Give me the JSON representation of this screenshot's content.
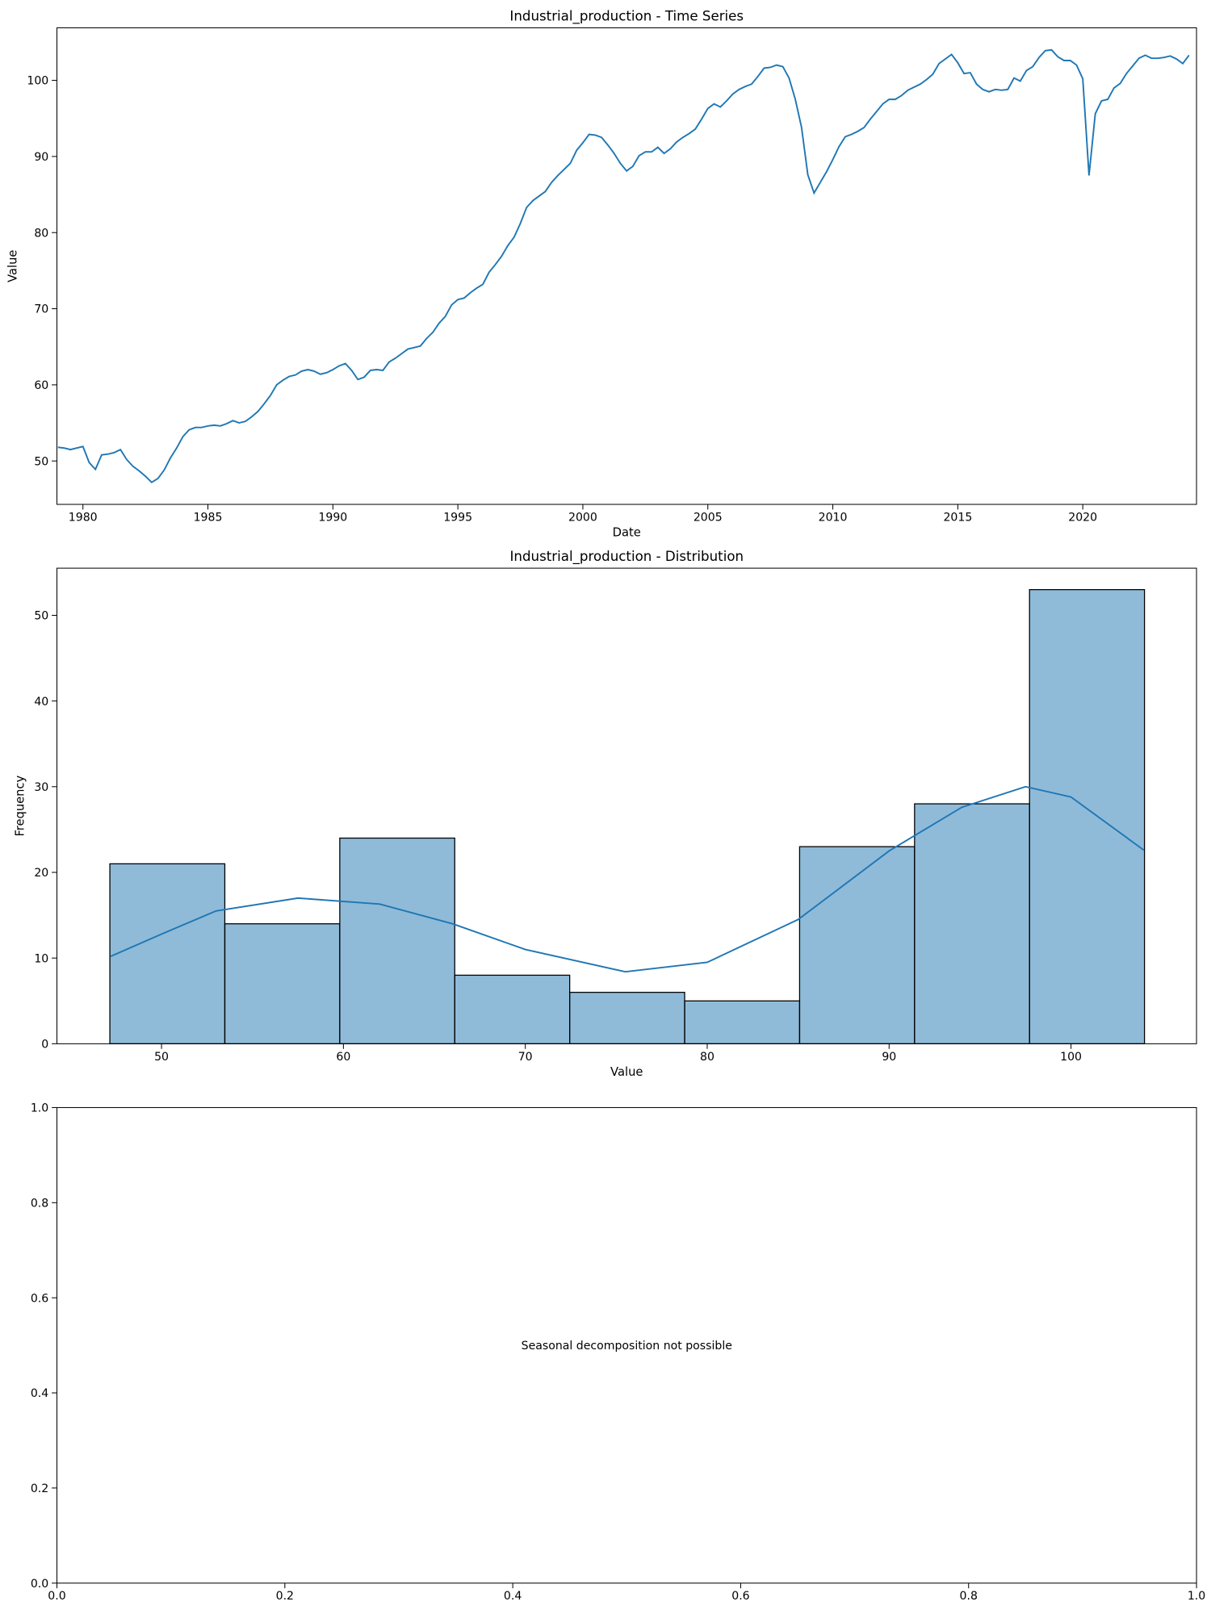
{
  "chart_data": [
    {
      "type": "line",
      "title": "Industrial_production - Time Series",
      "xlabel": "Date",
      "ylabel": "Value",
      "color": "#1f77b4",
      "xlim": [
        1978.96,
        2024.55
      ],
      "xticks": [
        1980,
        1985,
        1990,
        1995,
        2000,
        2005,
        2010,
        2015,
        2020
      ],
      "ylim": [
        44.3,
        106.9
      ],
      "yticks": [
        50,
        60,
        70,
        80,
        90,
        100
      ],
      "x": [
        1979,
        1979.25,
        1979.5,
        1979.75,
        1980,
        1980.25,
        1980.5,
        1980.75,
        1981,
        1981.25,
        1981.5,
        1981.75,
        1982,
        1982.25,
        1982.5,
        1982.75,
        1983,
        1983.25,
        1983.5,
        1983.75,
        1984,
        1984.25,
        1984.5,
        1984.75,
        1985,
        1985.25,
        1985.5,
        1985.75,
        1986,
        1986.25,
        1986.5,
        1986.75,
        1987,
        1987.25,
        1987.5,
        1987.75,
        1988,
        1988.25,
        1988.5,
        1988.75,
        1989,
        1989.25,
        1989.5,
        1989.75,
        1990,
        1990.25,
        1990.5,
        1990.75,
        1991,
        1991.25,
        1991.5,
        1991.75,
        1992,
        1992.25,
        1992.5,
        1992.75,
        1993,
        1993.25,
        1993.5,
        1993.75,
        1994,
        1994.25,
        1994.5,
        1994.75,
        1995,
        1995.25,
        1995.5,
        1995.75,
        1996,
        1996.25,
        1996.5,
        1996.75,
        1997,
        1997.25,
        1997.5,
        1997.75,
        1998,
        1998.25,
        1998.5,
        1998.75,
        1999,
        1999.25,
        1999.5,
        1999.75,
        2000,
        2000.25,
        2000.5,
        2000.75,
        2001,
        2001.25,
        2001.5,
        2001.75,
        2002,
        2002.25,
        2002.5,
        2002.75,
        2003,
        2003.25,
        2003.5,
        2003.75,
        2004,
        2004.25,
        2004.5,
        2004.75,
        2005,
        2005.25,
        2005.5,
        2005.75,
        2006,
        2006.25,
        2006.5,
        2006.75,
        2007,
        2007.25,
        2007.5,
        2007.75,
        2008,
        2008.25,
        2008.5,
        2008.75,
        2009,
        2009.25,
        2009.5,
        2009.75,
        2010,
        2010.25,
        2010.5,
        2010.75,
        2011,
        2011.25,
        2011.5,
        2011.75,
        2012,
        2012.25,
        2012.5,
        2012.75,
        2013,
        2013.25,
        2013.5,
        2013.75,
        2014,
        2014.25,
        2014.5,
        2014.75,
        2015,
        2015.25,
        2015.5,
        2015.75,
        2016,
        2016.25,
        2016.5,
        2016.75,
        2017,
        2017.25,
        2017.5,
        2017.75,
        2018,
        2018.25,
        2018.5,
        2018.75,
        2019,
        2019.25,
        2019.5,
        2019.75,
        2020,
        2020.25,
        2020.5,
        2020.75,
        2021,
        2021.25,
        2021.5,
        2021.75,
        2022,
        2022.25,
        2022.5,
        2022.75,
        2023,
        2023.25,
        2023.5,
        2023.75,
        2024,
        2024.25
      ],
      "values": [
        51.8,
        51.7,
        51.5,
        51.7,
        51.9,
        49.8,
        48.9,
        50.8,
        50.9,
        51.1,
        51.5,
        50.2,
        49.3,
        48.7,
        48.0,
        47.2,
        47.7,
        48.8,
        50.4,
        51.7,
        53.2,
        54.1,
        54.4,
        54.4,
        54.6,
        54.7,
        54.6,
        54.9,
        55.3,
        55.0,
        55.2,
        55.8,
        56.5,
        57.5,
        58.6,
        60.0,
        60.6,
        61.1,
        61.3,
        61.8,
        62.0,
        61.8,
        61.4,
        61.6,
        62.0,
        62.5,
        62.8,
        61.9,
        60.7,
        61.0,
        61.9,
        62.0,
        61.9,
        63.0,
        63.5,
        64.1,
        64.7,
        64.9,
        65.1,
        66.1,
        66.9,
        68.1,
        69.0,
        70.5,
        71.2,
        71.4,
        72.1,
        72.7,
        73.2,
        74.8,
        75.8,
        76.9,
        78.3,
        79.4,
        81.2,
        83.3,
        84.2,
        84.8,
        85.4,
        86.6,
        87.5,
        88.3,
        89.1,
        90.8,
        91.8,
        92.9,
        92.8,
        92.5,
        91.5,
        90.4,
        89.1,
        88.1,
        88.7,
        90.1,
        90.6,
        90.6,
        91.2,
        90.4,
        91.0,
        91.9,
        92.5,
        93.0,
        93.6,
        94.9,
        96.3,
        96.9,
        96.5,
        97.3,
        98.2,
        98.8,
        99.2,
        99.5,
        100.5,
        101.6,
        101.7,
        102.0,
        101.8,
        100.3,
        97.5,
        93.8,
        87.6,
        85.2,
        86.6,
        88.0,
        89.6,
        91.3,
        92.6,
        92.9,
        93.3,
        93.8,
        94.9,
        95.9,
        96.9,
        97.5,
        97.5,
        98.0,
        98.7,
        99.1,
        99.5,
        100.1,
        100.8,
        102.2,
        102.8,
        103.4,
        102.3,
        100.9,
        101.0,
        99.5,
        98.8,
        98.5,
        98.8,
        98.7,
        98.8,
        100.3,
        99.9,
        101.3,
        101.8,
        103.0,
        103.9,
        104.0,
        103.1,
        102.6,
        102.6,
        102.0,
        100.2,
        87.5,
        95.6,
        97.3,
        97.5,
        99.0,
        99.6,
        100.9,
        101.9,
        102.9,
        103.3,
        102.9,
        102.9,
        103.0,
        103.2,
        102.8,
        102.2,
        103.3
      ]
    },
    {
      "type": "histogram",
      "title": "Industrial_production - Distribution",
      "xlabel": "Value",
      "ylabel": "Frequency",
      "color": "#1f77b4",
      "xlim": [
        44.25,
        106.9
      ],
      "xticks": [
        50,
        60,
        70,
        80,
        90,
        100
      ],
      "ylim": [
        0,
        55.5
      ],
      "yticks": [
        0,
        10,
        20,
        30,
        40,
        50
      ],
      "bins": [
        47.16,
        53.48,
        59.8,
        66.12,
        72.44,
        78.76,
        85.08,
        91.4,
        97.72,
        104.04
      ],
      "counts": [
        21,
        14,
        24,
        8,
        6,
        5,
        23,
        28,
        53
      ],
      "kde": {
        "color": "#1f77b4",
        "x": [
          47.2,
          50,
          53,
          57.5,
          62,
          66,
          70,
          75.5,
          80,
          85,
          90,
          94,
          97.5,
          100,
          104
        ],
        "values": [
          10.2,
          12.8,
          15.5,
          17.0,
          16.3,
          14.0,
          11.0,
          8.4,
          9.5,
          14.5,
          22.5,
          27.6,
          30.0,
          28.8,
          22.6
        ]
      }
    },
    {
      "type": "text",
      "xlim": [
        0,
        1
      ],
      "ylim": [
        0,
        1
      ],
      "xticks": [
        {
          "value": 0,
          "label": "0.0"
        },
        {
          "value": 0.2,
          "label": "0.2"
        },
        {
          "value": 0.4,
          "label": "0.4"
        },
        {
          "value": 0.6,
          "label": "0.6"
        },
        {
          "value": 0.8,
          "label": "0.8"
        },
        {
          "value": 1,
          "label": "1.0"
        }
      ],
      "yticks": [
        {
          "value": 0,
          "label": "0.0"
        },
        {
          "value": 0.2,
          "label": "0.2"
        },
        {
          "value": 0.4,
          "label": "0.4"
        },
        {
          "value": 0.6,
          "label": "0.6"
        },
        {
          "value": 0.8,
          "label": "0.8"
        },
        {
          "value": 1,
          "label": "1.0"
        }
      ],
      "annotation": {
        "text": "Seasonal decomposition not possible",
        "x": 0.5,
        "y": 0.5
      }
    }
  ]
}
